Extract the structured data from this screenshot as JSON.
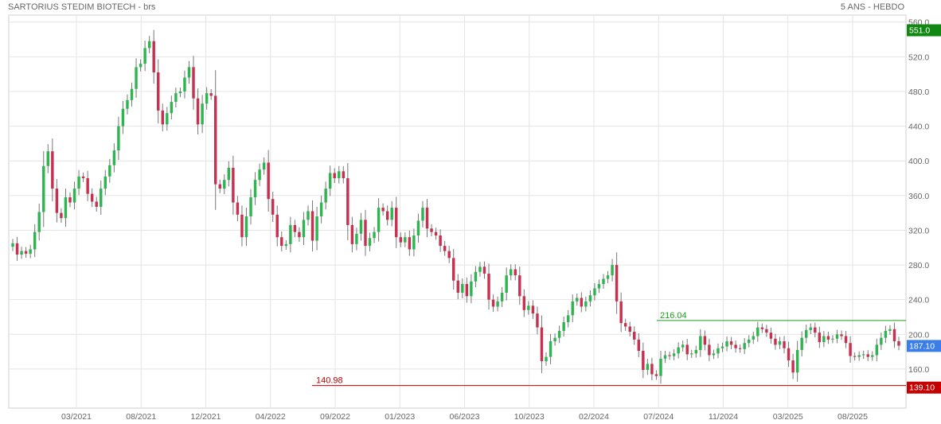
{
  "header": {
    "title": "SARTORIUS STEDIM BIOTECH - brs",
    "period": "5 ANS - HEBDO"
  },
  "colors": {
    "up": "#2eb54f",
    "down": "#c8304f",
    "grid": "#e4e4e4",
    "resistance": "#1a9d1a",
    "support": "#c40000",
    "last_badge": "#3b7ee8",
    "high_badge": "#118811",
    "low_badge": "#c40000"
  },
  "chart_data": {
    "type": "candlestick",
    "title": "SARTORIUS STEDIM BIOTECH - brs",
    "period": "5 ANS - HEBDO",
    "x_ticks": [
      "03/2021",
      "08/2021",
      "12/2021",
      "04/2022",
      "09/2022",
      "01/2023",
      "06/2023",
      "10/2023",
      "02/2024",
      "07/2024",
      "11/2024",
      "03/2025",
      "08/2025"
    ],
    "y_ticks": [
      "560.0",
      "520.0",
      "480.0",
      "440.0",
      "400.0",
      "360.0",
      "320.0",
      "280.0",
      "240.0",
      "200.0",
      "160.0"
    ],
    "ylim": [
      115,
      568
    ],
    "grid": true,
    "weekly_close_approx": [
      305,
      292,
      296,
      293,
      298,
      318,
      341,
      394,
      411,
      368,
      340,
      334,
      358,
      352,
      368,
      382,
      380,
      362,
      353,
      347,
      368,
      382,
      395,
      412,
      440,
      460,
      470,
      483,
      508,
      512,
      530,
      538,
      502,
      458,
      442,
      455,
      468,
      478,
      480,
      496,
      508,
      472,
      442,
      466,
      478,
      475,
      373,
      368,
      378,
      392,
      352,
      338,
      312,
      336,
      358,
      378,
      390,
      398,
      356,
      338,
      312,
      302,
      304,
      326,
      318,
      312,
      332,
      342,
      308,
      336,
      352,
      368,
      386,
      380,
      388,
      380,
      326,
      304,
      316,
      332,
      302,
      311,
      318,
      346,
      342,
      332,
      346,
      312,
      306,
      312,
      298,
      314,
      331,
      346,
      322,
      318,
      314,
      302,
      296,
      288,
      262,
      248,
      258,
      244,
      261,
      272,
      278,
      270,
      240,
      232,
      238,
      248,
      268,
      275,
      268,
      244,
      228,
      233,
      224,
      208,
      169,
      174,
      192,
      196,
      204,
      214,
      222,
      238,
      242,
      232,
      238,
      245,
      253,
      258,
      264,
      268,
      280,
      238,
      213,
      209,
      203,
      194,
      181,
      159,
      166,
      154,
      152,
      172,
      176,
      175,
      178,
      185,
      188,
      177,
      178,
      182,
      198,
      188,
      176,
      178,
      184,
      186,
      192,
      188,
      184,
      183,
      190,
      194,
      198,
      208,
      206,
      202,
      195,
      188,
      192,
      184,
      170,
      156,
      182,
      196,
      205,
      208,
      202,
      191,
      198,
      194,
      195,
      200,
      198,
      190,
      175,
      174,
      176,
      177,
      174,
      176,
      188,
      196,
      204,
      206,
      192,
      187
    ],
    "levels": [
      {
        "name": "resistance",
        "value": 216.04,
        "label": "216.04"
      },
      {
        "name": "support",
        "value": 140.98,
        "label": "140.98"
      }
    ],
    "badges": [
      {
        "name": "high",
        "value": 551.0,
        "label": "551.0"
      },
      {
        "name": "last",
        "value": 187.1,
        "label": "187.10"
      },
      {
        "name": "low",
        "value": 139.1,
        "label": "139.10"
      }
    ]
  }
}
